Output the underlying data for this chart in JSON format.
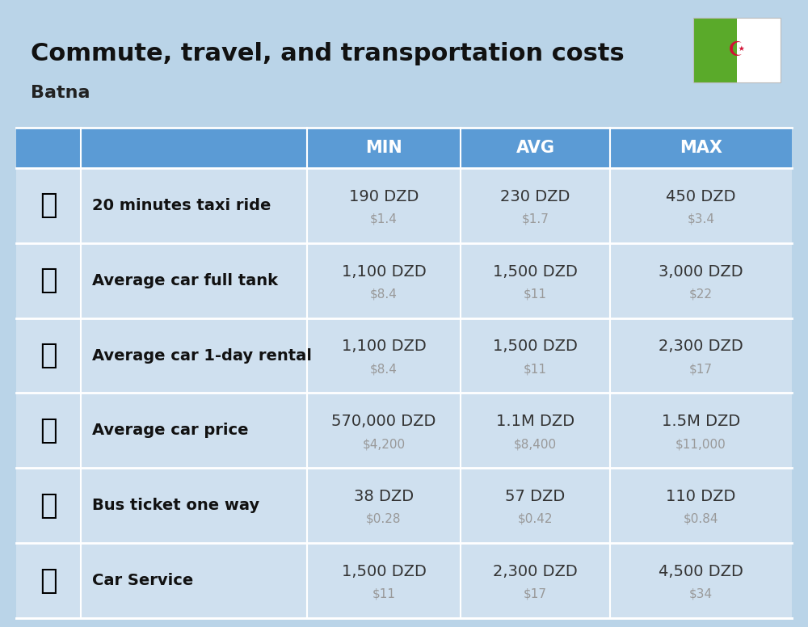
{
  "title": "Commute, travel, and transportation costs",
  "subtitle": "Batna",
  "background_color": "#bad4e8",
  "header_bg_color": "#5b9bd5",
  "header_text_color": "#ffffff",
  "row_bg_color": "#cfe0ef",
  "cell_text_color": "#333333",
  "usd_text_color": "#999999",
  "columns": [
    "MIN",
    "AVG",
    "MAX"
  ],
  "flag_green": "#5aaa2a",
  "flag_white": "#ffffff",
  "flag_red": "#d21034",
  "rows": [
    {
      "label": "20 minutes taxi ride",
      "min_dzd": "190 DZD",
      "min_usd": "$1.4",
      "avg_dzd": "230 DZD",
      "avg_usd": "$1.7",
      "max_dzd": "450 DZD",
      "max_usd": "$3.4"
    },
    {
      "label": "Average car full tank",
      "min_dzd": "1,100 DZD",
      "min_usd": "$8.4",
      "avg_dzd": "1,500 DZD",
      "avg_usd": "$11",
      "max_dzd": "3,000 DZD",
      "max_usd": "$22"
    },
    {
      "label": "Average car 1-day rental",
      "min_dzd": "1,100 DZD",
      "min_usd": "$8.4",
      "avg_dzd": "1,500 DZD",
      "avg_usd": "$11",
      "max_dzd": "2,300 DZD",
      "max_usd": "$17"
    },
    {
      "label": "Average car price",
      "min_dzd": "570,000 DZD",
      "min_usd": "$4,200",
      "avg_dzd": "1.1M DZD",
      "avg_usd": "$8,400",
      "max_dzd": "1.5M DZD",
      "max_usd": "$11,000"
    },
    {
      "label": "Bus ticket one way",
      "min_dzd": "38 DZD",
      "min_usd": "$0.28",
      "avg_dzd": "57 DZD",
      "avg_usd": "$0.42",
      "max_dzd": "110 DZD",
      "max_usd": "$0.84"
    },
    {
      "label": "Car Service",
      "min_dzd": "1,500 DZD",
      "min_usd": "$11",
      "avg_dzd": "2,300 DZD",
      "avg_usd": "$17",
      "max_dzd": "4,500 DZD",
      "max_usd": "$34"
    }
  ],
  "row_icons": [
    "🚕",
    "⛽️",
    "🚙",
    "🚗",
    "🚌",
    "🔧"
  ]
}
